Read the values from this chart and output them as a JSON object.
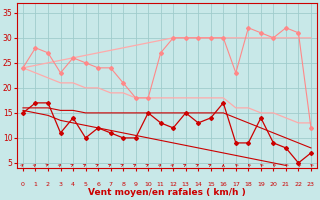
{
  "x": [
    0,
    1,
    2,
    3,
    4,
    5,
    6,
    7,
    8,
    9,
    10,
    11,
    12,
    13,
    14,
    15,
    16,
    17,
    18,
    19,
    20,
    21,
    22,
    23
  ],
  "series": [
    {
      "name": "rafales_zigzag",
      "color": "#ff8888",
      "linewidth": 0.8,
      "marker": "D",
      "markersize": 2.0,
      "values": [
        24,
        28,
        27,
        23,
        26,
        25,
        24,
        24,
        21,
        18,
        18,
        27,
        30,
        30,
        30,
        30,
        30,
        23,
        32,
        31,
        30,
        32,
        31,
        12
      ]
    },
    {
      "name": "rafales_trend_upper",
      "color": "#ffaaaa",
      "linewidth": 0.9,
      "marker": null,
      "markersize": 0,
      "values": [
        24,
        24.5,
        25,
        25.5,
        26,
        26.5,
        27,
        27.5,
        28,
        28.5,
        29,
        29.5,
        30,
        30,
        30,
        30,
        30,
        30,
        30,
        30,
        30,
        30,
        30,
        30
      ]
    },
    {
      "name": "rafales_trend_lower",
      "color": "#ffaaaa",
      "linewidth": 0.9,
      "marker": null,
      "markersize": 0,
      "values": [
        24,
        23,
        22,
        21,
        21,
        20,
        20,
        19,
        19,
        18,
        18,
        18,
        18,
        18,
        18,
        18,
        18,
        16,
        16,
        15,
        15,
        14,
        13,
        13
      ]
    },
    {
      "name": "mean_zigzag",
      "color": "#cc0000",
      "linewidth": 0.9,
      "marker": "D",
      "markersize": 2.0,
      "values": [
        15,
        17,
        17,
        11,
        14,
        10,
        12,
        11,
        10,
        10,
        15,
        13,
        12,
        15,
        13,
        14,
        17,
        9,
        9,
        14,
        9,
        8,
        5,
        7
      ]
    },
    {
      "name": "mean_trend_upper",
      "color": "#cc0000",
      "linewidth": 0.8,
      "marker": null,
      "markersize": 0,
      "values": [
        16,
        16,
        16,
        15.5,
        15.5,
        15,
        15,
        15,
        15,
        15,
        15,
        15,
        15,
        15,
        15,
        15,
        15,
        14,
        13,
        12,
        11,
        10,
        9,
        8
      ]
    },
    {
      "name": "mean_trend_lower",
      "color": "#cc0000",
      "linewidth": 0.8,
      "marker": null,
      "markersize": 0,
      "values": [
        15.5,
        15,
        14.5,
        13.5,
        13,
        12.5,
        12,
        11.5,
        11,
        10.5,
        10,
        9.5,
        9,
        8.5,
        8,
        7.5,
        7,
        6.5,
        6,
        5.5,
        5,
        4.5,
        null,
        null
      ]
    }
  ],
  "arrow_angles": [
    45,
    45,
    15,
    45,
    30,
    30,
    30,
    30,
    30,
    30,
    30,
    45,
    45,
    30,
    30,
    30,
    90,
    135,
    135,
    135,
    135,
    135,
    135,
    135
  ],
  "xlabel": "Vent moyen/en rafales ( km/h )",
  "xlim": [
    -0.5,
    23.5
  ],
  "ylim": [
    4,
    37
  ],
  "yticks": [
    5,
    10,
    15,
    20,
    25,
    30,
    35
  ],
  "xticks": [
    0,
    1,
    2,
    3,
    4,
    5,
    6,
    7,
    8,
    9,
    10,
    11,
    12,
    13,
    14,
    15,
    16,
    17,
    18,
    19,
    20,
    21,
    22,
    23
  ],
  "bg_color": "#c8e8e8",
  "grid_color": "#a0cccc",
  "axis_color": "#cc0000",
  "label_color": "#cc0000",
  "tick_color": "#cc0000"
}
